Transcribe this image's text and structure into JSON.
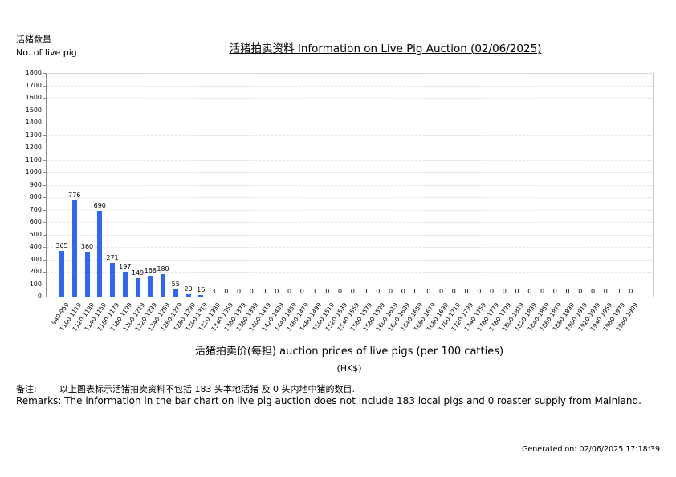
{
  "header": {
    "y_label_cn": "活猪数量",
    "y_label_en": "No. of live pig",
    "title": "活猪拍卖资料 Information on Live Pig Auction (02/06/2025)"
  },
  "axis": {
    "x_label": "活猪拍卖价(每担) auction prices of live pigs (per 100 catties)",
    "x_unit": "(HK$)"
  },
  "remarks": {
    "cn_prefix": "备注:",
    "cn_text": "以上图表标示活猪拍卖资料不包括 183 头本地活猪 及 0 头内地中猪的数目.",
    "en_text": "Remarks: The information in the bar chart on live pig auction does not include 183 local pigs and 0 roaster supply from Mainland."
  },
  "footer": {
    "generated": "Generated on: 02/06/2025 17:18:39"
  },
  "colors": {
    "bar": "#3366ee",
    "grid": "#e2e2e2",
    "axis": "#8a8a8a"
  },
  "chart_data": {
    "type": "bar",
    "title": "活猪拍卖资料 Information on Live Pig Auction (02/06/2025)",
    "xlabel": "活猪拍卖价(每担) auction prices of live pigs (per 100 catties) (HK$)",
    "ylabel": "活猪数量 No. of live pig",
    "ylim": [
      0,
      1800
    ],
    "yticks": [
      0,
      100,
      200,
      300,
      400,
      500,
      600,
      700,
      800,
      900,
      1000,
      1100,
      1200,
      1300,
      1400,
      1500,
      1600,
      1700,
      1800
    ],
    "grid": true,
    "legend": null,
    "categories": [
      "940-959",
      "1100-1119",
      "1120-1139",
      "1140-1159",
      "1160-1179",
      "1180-1199",
      "1200-1219",
      "1220-1239",
      "1240-1259",
      "1260-1279",
      "1280-1299",
      "1300-1319",
      "1320-1339",
      "1340-1359",
      "1360-1379",
      "1380-1399",
      "1400-1419",
      "1420-1439",
      "1440-1459",
      "1460-1479",
      "1480-1499",
      "1500-1519",
      "1520-1539",
      "1540-1559",
      "1560-1579",
      "1580-1599",
      "1600-1619",
      "1620-1639",
      "1640-1659",
      "1660-1679",
      "1680-1699",
      "1700-1719",
      "1720-1739",
      "1740-1759",
      "1760-1779",
      "1780-1799",
      "1800-1819",
      "1820-1839",
      "1840-1859",
      "1860-1879",
      "1880-1899",
      "1900-1919",
      "1920-1939",
      "1940-1959",
      "1960-1979",
      "1980-1999"
    ],
    "values": [
      365,
      776,
      360,
      690,
      271,
      197,
      149,
      168,
      180,
      55,
      20,
      16,
      3,
      0,
      0,
      0,
      0,
      0,
      0,
      0,
      1,
      0,
      0,
      0,
      0,
      0,
      0,
      0,
      0,
      0,
      0,
      0,
      0,
      0,
      0,
      0,
      0,
      0,
      0,
      0,
      0,
      0,
      0,
      0,
      0,
      0
    ]
  }
}
